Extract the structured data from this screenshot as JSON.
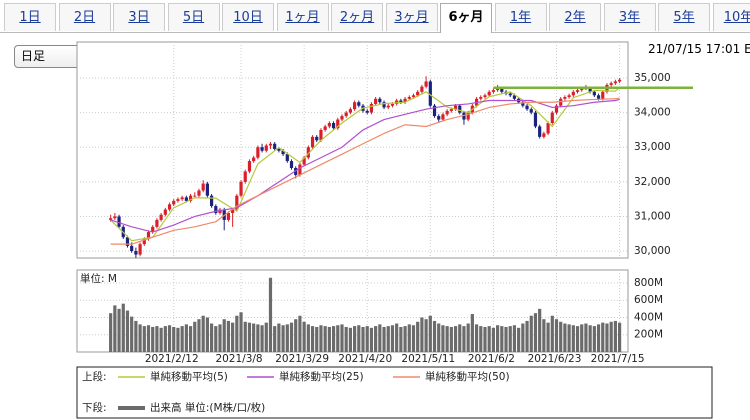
{
  "tabs": [
    "1日",
    "2日",
    "3日",
    "5日",
    "10日",
    "1ヶ月",
    "2ヶ月",
    "3ヶ月",
    "6ヶ月",
    "1年",
    "2年",
    "3年",
    "5年",
    "10年"
  ],
  "selected_tab": 8,
  "dropdown": "日足",
  "timestamp": "21/07/15 17:01 E",
  "chart_data": [
    {
      "type": "candlestick",
      "legend_prefix": "上段:",
      "xlim": [
        -8,
        123
      ],
      "ylim": [
        29800,
        36040
      ],
      "xticks": [
        {
          "value": 15,
          "label": "2021/2/12"
        },
        {
          "value": 31,
          "label": "2021/3/8"
        },
        {
          "value": 46,
          "label": "2021/3/29"
        },
        {
          "value": 61,
          "label": "2021/4/20"
        },
        {
          "value": 76,
          "label": "2021/5/11"
        },
        {
          "value": 91,
          "label": "2021/6/2"
        },
        {
          "value": 106,
          "label": "2021/6/23"
        },
        {
          "value": 121,
          "label": "2021/7/15"
        }
      ],
      "yticks": [
        {
          "value": 30000,
          "label": "30,000"
        },
        {
          "value": 31000,
          "label": "31,000"
        },
        {
          "value": 32000,
          "label": "32,000"
        },
        {
          "value": 33000,
          "label": "33,000"
        },
        {
          "value": 34000,
          "label": "34,000"
        },
        {
          "value": 35000,
          "label": "35,000"
        }
      ],
      "up_color": "#d9202a",
      "down_color": "#1a237e",
      "ohlc": [
        [
          30900,
          31050,
          30850,
          30950
        ],
        [
          30950,
          31100,
          30900,
          31000
        ],
        [
          31000,
          31050,
          30650,
          30700
        ],
        [
          30700,
          30750,
          30350,
          30400
        ],
        [
          30400,
          30450,
          30100,
          30150
        ],
        [
          30150,
          30250,
          29950,
          30000
        ],
        [
          30000,
          30100,
          29800,
          29900
        ],
        [
          29900,
          30250,
          29850,
          30200
        ],
        [
          30200,
          30400,
          30150,
          30350
        ],
        [
          30350,
          30600,
          30300,
          30550
        ],
        [
          30550,
          30750,
          30500,
          30700
        ],
        [
          30700,
          30950,
          30650,
          30900
        ],
        [
          30900,
          31100,
          30850,
          31050
        ],
        [
          31050,
          31250,
          31000,
          31200
        ],
        [
          31200,
          31400,
          31150,
          31350
        ],
        [
          31350,
          31500,
          31300,
          31450
        ],
        [
          31450,
          31550,
          31400,
          31500
        ],
        [
          31500,
          31600,
          31450,
          31550
        ],
        [
          31550,
          31600,
          31400,
          31450
        ],
        [
          31450,
          31650,
          31400,
          31600
        ],
        [
          31600,
          31700,
          31550,
          31600
        ],
        [
          31600,
          31800,
          31550,
          31750
        ],
        [
          31750,
          32050,
          31700,
          31950
        ],
        [
          31950,
          32000,
          31550,
          31600
        ],
        [
          31600,
          31650,
          31250,
          31300
        ],
        [
          31300,
          31350,
          31050,
          31100
        ],
        [
          31100,
          31250,
          31050,
          31200
        ],
        [
          31200,
          31250,
          30600,
          30900
        ],
        [
          30900,
          31150,
          30850,
          31100
        ],
        [
          31100,
          31250,
          30700,
          31200
        ],
        [
          31200,
          31650,
          31150,
          31600
        ],
        [
          31600,
          32050,
          31550,
          32000
        ],
        [
          32000,
          32350,
          31950,
          32300
        ],
        [
          32300,
          32650,
          32250,
          32600
        ],
        [
          32600,
          32750,
          32550,
          32700
        ],
        [
          32700,
          33050,
          32650,
          33000
        ],
        [
          33000,
          33100,
          32850,
          32900
        ],
        [
          32900,
          33100,
          32850,
          33050
        ],
        [
          33050,
          33150,
          32950,
          33100
        ],
        [
          33100,
          33150,
          32900,
          32950
        ],
        [
          32950,
          33000,
          32850,
          32900
        ],
        [
          32900,
          32950,
          32750,
          32800
        ],
        [
          32800,
          32850,
          32550,
          32600
        ],
        [
          32600,
          32650,
          32350,
          32400
        ],
        [
          32400,
          32450,
          32100,
          32200
        ],
        [
          32200,
          32550,
          32150,
          32500
        ],
        [
          32500,
          32750,
          32450,
          32700
        ],
        [
          32700,
          33050,
          32650,
          33000
        ],
        [
          33000,
          33350,
          32950,
          33300
        ],
        [
          33300,
          33350,
          33150,
          33200
        ],
        [
          33200,
          33550,
          33150,
          33500
        ],
        [
          33500,
          33650,
          33450,
          33600
        ],
        [
          33600,
          33750,
          33550,
          33700
        ],
        [
          33700,
          33750,
          33500,
          33550
        ],
        [
          33550,
          33850,
          33500,
          33800
        ],
        [
          33800,
          33950,
          33750,
          33900
        ],
        [
          33900,
          34050,
          33850,
          34000
        ],
        [
          34000,
          34150,
          33950,
          34100
        ],
        [
          34100,
          34350,
          34050,
          34300
        ],
        [
          34300,
          34350,
          34150,
          34200
        ],
        [
          34200,
          34250,
          34000,
          34050
        ],
        [
          34050,
          34100,
          33950,
          34000
        ],
        [
          34000,
          34300,
          33950,
          34250
        ],
        [
          34250,
          34450,
          34200,
          34400
        ],
        [
          34400,
          34450,
          34250,
          34300
        ],
        [
          34300,
          34350,
          34100,
          34150
        ],
        [
          34150,
          34250,
          34100,
          34200
        ],
        [
          34200,
          34300,
          34150,
          34250
        ],
        [
          34250,
          34400,
          34200,
          34350
        ],
        [
          34350,
          34400,
          34250,
          34300
        ],
        [
          34300,
          34450,
          34250,
          34400
        ],
        [
          34400,
          34500,
          34350,
          34450
        ],
        [
          34450,
          34550,
          34400,
          34500
        ],
        [
          34500,
          34650,
          34450,
          34600
        ],
        [
          34600,
          34800,
          34550,
          34750
        ],
        [
          34750,
          35050,
          34700,
          34900
        ],
        [
          34900,
          34950,
          34150,
          34200
        ],
        [
          34200,
          34250,
          33850,
          33900
        ],
        [
          33900,
          33950,
          33700,
          33800
        ],
        [
          33800,
          34000,
          33750,
          33950
        ],
        [
          33950,
          34100,
          33900,
          34050
        ],
        [
          34050,
          34150,
          34000,
          34100
        ],
        [
          34100,
          34250,
          34050,
          34200
        ],
        [
          34200,
          34250,
          33950,
          34000
        ],
        [
          34000,
          34050,
          33650,
          33800
        ],
        [
          33800,
          34050,
          33750,
          34000
        ],
        [
          34000,
          34250,
          33950,
          34200
        ],
        [
          34200,
          34450,
          34150,
          34400
        ],
        [
          34400,
          34500,
          34350,
          34450
        ],
        [
          34450,
          34550,
          34400,
          34500
        ],
        [
          34500,
          34650,
          34450,
          34600
        ],
        [
          34600,
          34700,
          34550,
          34650
        ],
        [
          34650,
          34800,
          34600,
          34700
        ],
        [
          34700,
          34750,
          34550,
          34600
        ],
        [
          34600,
          34650,
          34500,
          34550
        ],
        [
          34550,
          34600,
          34450,
          34500
        ],
        [
          34500,
          34550,
          34350,
          34400
        ],
        [
          34400,
          34450,
          34250,
          34300
        ],
        [
          34300,
          34350,
          34150,
          34200
        ],
        [
          34200,
          34250,
          34050,
          34100
        ],
        [
          34100,
          34150,
          33950,
          34000
        ],
        [
          34000,
          34050,
          33550,
          33600
        ],
        [
          33600,
          33650,
          33250,
          33300
        ],
        [
          33300,
          33450,
          33250,
          33400
        ],
        [
          33400,
          33750,
          33350,
          33700
        ],
        [
          33700,
          34050,
          33650,
          34000
        ],
        [
          34000,
          34250,
          33950,
          34200
        ],
        [
          34200,
          34450,
          34150,
          34400
        ],
        [
          34400,
          34500,
          34350,
          34450
        ],
        [
          34450,
          34550,
          34400,
          34500
        ],
        [
          34500,
          34650,
          34450,
          34600
        ],
        [
          34600,
          34700,
          34550,
          34650
        ],
        [
          34650,
          34750,
          34600,
          34700
        ],
        [
          34700,
          34800,
          34650,
          34700
        ],
        [
          34700,
          34750,
          34550,
          34600
        ],
        [
          34600,
          34650,
          34450,
          34500
        ],
        [
          34500,
          34550,
          34350,
          34400
        ],
        [
          34400,
          34650,
          34350,
          34600
        ],
        [
          34600,
          34850,
          34550,
          34800
        ],
        [
          34800,
          34900,
          34750,
          34850
        ],
        [
          34850,
          34950,
          34800,
          34900
        ],
        [
          34900,
          35000,
          34850,
          34950
        ]
      ],
      "series": [
        {
          "name": "単純移動平均(5)",
          "color": "#b5c83a",
          "x": [
            0,
            5,
            10,
            15,
            20,
            25,
            30,
            35,
            40,
            45,
            50,
            55,
            60,
            65,
            70,
            75,
            80,
            85,
            90,
            95,
            100,
            105,
            110,
            115,
            120,
            121
          ],
          "values": [
            30900,
            30300,
            30400,
            31250,
            31540,
            31530,
            31150,
            32520,
            32990,
            32560,
            33200,
            33700,
            34130,
            34260,
            34300,
            34600,
            34160,
            34000,
            34460,
            34600,
            34200,
            33600,
            34430,
            34640,
            34620,
            34720
          ]
        },
        {
          "name": "単純移動平均(25)",
          "color": "#b04fd0",
          "x": [
            0,
            5,
            10,
            15,
            20,
            25,
            30,
            35,
            40,
            45,
            50,
            55,
            60,
            65,
            70,
            75,
            80,
            85,
            90,
            95,
            100,
            105,
            110,
            115,
            120,
            121
          ],
          "values": [
            30900,
            30700,
            30550,
            30750,
            31000,
            31150,
            31250,
            31600,
            32000,
            32400,
            32700,
            33000,
            33500,
            33800,
            33950,
            34100,
            34200,
            34250,
            34350,
            34350,
            34350,
            34150,
            34200,
            34300,
            34350,
            34380
          ]
        },
        {
          "name": "単純移動平均(50)",
          "color": "#ee8a6a",
          "x": [
            0,
            5,
            10,
            15,
            20,
            25,
            30,
            35,
            40,
            45,
            50,
            55,
            60,
            65,
            70,
            75,
            80,
            85,
            90,
            95,
            100,
            105,
            110,
            115,
            120,
            121
          ],
          "values": [
            30200,
            30200,
            30400,
            30600,
            30700,
            30850,
            31300,
            31600,
            31900,
            32200,
            32500,
            32800,
            33100,
            33400,
            33650,
            33600,
            33800,
            33950,
            34150,
            34250,
            34300,
            34300,
            34350,
            34380,
            34400,
            34420
          ]
        }
      ],
      "reference_line": {
        "value": 34720,
        "from": 91,
        "color": "#7db33b"
      }
    },
    {
      "type": "bar",
      "legend_prefix": "下段:",
      "unit_label": "単位: M",
      "ylim": [
        0,
        950
      ],
      "yticks": [
        {
          "value": 200,
          "label": "200M"
        },
        {
          "value": 400,
          "label": "400M"
        },
        {
          "value": 600,
          "label": "600M"
        },
        {
          "value": 800,
          "label": "800M"
        }
      ],
      "series": [
        {
          "name": "出来高 単位:(M株/口/枚)",
          "color": "#6b6b6b",
          "values": [
            450,
            540,
            500,
            560,
            480,
            410,
            360,
            320,
            300,
            310,
            290,
            300,
            280,
            300,
            310,
            290,
            280,
            300,
            320,
            300,
            350,
            380,
            420,
            400,
            330,
            300,
            320,
            380,
            360,
            340,
            420,
            460,
            350,
            340,
            330,
            320,
            310,
            340,
            860,
            300,
            330,
            310,
            320,
            340,
            380,
            420,
            350,
            320,
            300,
            290,
            310,
            300,
            290,
            300,
            310,
            320,
            290,
            280,
            300,
            310,
            290,
            300,
            280,
            300,
            320,
            290,
            300,
            310,
            330,
            290,
            300,
            320,
            310,
            350,
            400,
            380,
            420,
            360,
            330,
            310,
            300,
            290,
            300,
            320,
            300,
            330,
            440,
            320,
            300,
            290,
            300,
            280,
            310,
            300,
            290,
            300,
            310,
            280,
            330,
            360,
            420,
            450,
            500,
            380,
            340,
            420,
            380,
            350,
            330,
            320,
            310,
            300,
            320,
            330,
            310,
            300,
            320,
            340,
            330,
            350,
            360,
            340
          ]
        }
      ]
    }
  ]
}
